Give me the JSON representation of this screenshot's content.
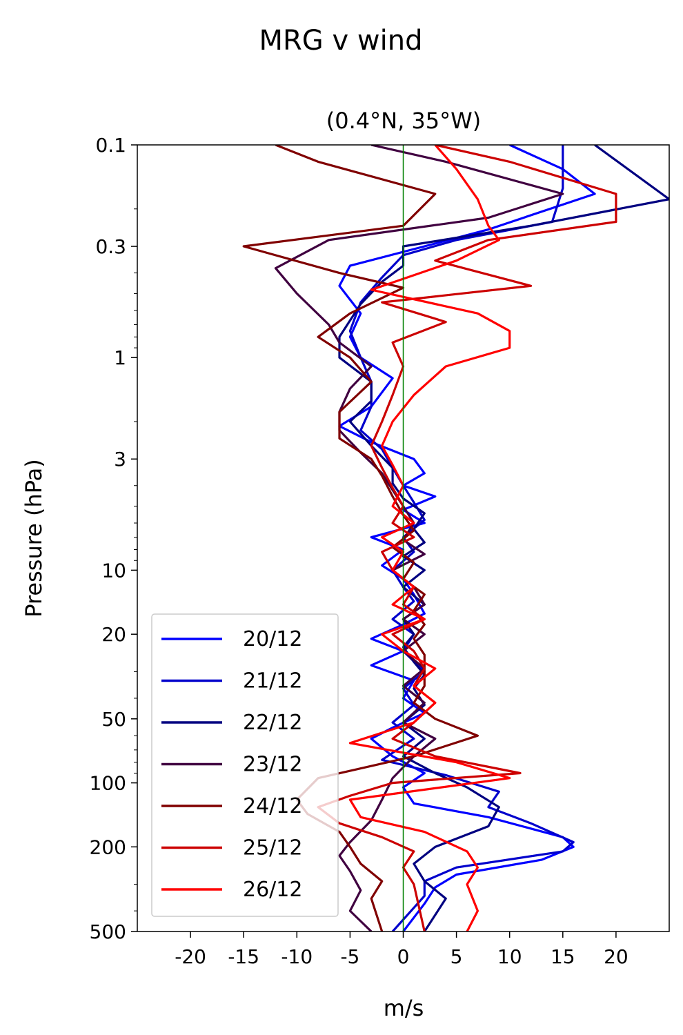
{
  "figure": {
    "suptitle": "MRG v wind"
  },
  "chart_data": {
    "type": "line",
    "title": "(0.4°N, 35°W)",
    "xlabel": "m/s",
    "ylabel": "Pressure (hPa)",
    "xlim": [
      -25,
      25
    ],
    "ylim": [
      500,
      0.1
    ],
    "yscale": "log",
    "grid": false,
    "legend_position": "lower-left",
    "x_ticks": [
      -20,
      -15,
      -10,
      -5,
      0,
      5,
      10,
      15,
      20
    ],
    "x_tick_labels": [
      "-20",
      "-15",
      "-10",
      "-5",
      "0",
      "5",
      "10",
      "15",
      "20"
    ],
    "y_ticks": [
      0.1,
      0.3,
      1,
      3,
      10,
      20,
      50,
      100,
      200,
      500
    ],
    "y_tick_labels": [
      "0.1",
      "0.3",
      "1",
      "3",
      "10",
      "20",
      "50",
      "100",
      "200",
      "500"
    ],
    "reference_line": {
      "x": 0,
      "color": "#008000"
    },
    "series": [
      {
        "name": "20/12",
        "color": "#0000ff",
        "points": [
          [
            10,
            0.1
          ],
          [
            15,
            0.13
          ],
          [
            18,
            0.17
          ],
          [
            8,
            0.25
          ],
          [
            2,
            0.3
          ],
          [
            -5,
            0.37
          ],
          [
            -6,
            0.46
          ],
          [
            -4,
            0.62
          ],
          [
            -5,
            0.8
          ],
          [
            -4,
            1.0
          ],
          [
            -1,
            1.25
          ],
          [
            -3,
            1.7
          ],
          [
            -6,
            2.1
          ],
          [
            -3,
            2.5
          ],
          [
            1,
            3.0
          ],
          [
            2,
            3.5
          ],
          [
            0,
            4.0
          ],
          [
            3,
            4.5
          ],
          [
            0,
            5.2
          ],
          [
            2,
            6.0
          ],
          [
            -3,
            7.0
          ],
          [
            0,
            8.0
          ],
          [
            -2,
            9.5
          ],
          [
            0,
            11
          ],
          [
            1,
            13
          ],
          [
            2,
            16
          ],
          [
            0,
            18
          ],
          [
            -3,
            21
          ],
          [
            0,
            24
          ],
          [
            -3,
            28
          ],
          [
            1,
            33
          ],
          [
            0,
            40
          ],
          [
            2,
            47
          ],
          [
            -1,
            55
          ],
          [
            -3,
            62
          ],
          [
            -1,
            75
          ],
          [
            2,
            90
          ],
          [
            0,
            105
          ],
          [
            1,
            125
          ],
          [
            8,
            145
          ],
          [
            15,
            180
          ],
          [
            16,
            200
          ],
          [
            13,
            230
          ],
          [
            5,
            270
          ],
          [
            3,
            310
          ],
          [
            2,
            370
          ],
          [
            0,
            500
          ]
        ]
      },
      {
        "name": "21/12",
        "color": "#0000cc",
        "points": [
          [
            15,
            0.1
          ],
          [
            15,
            0.16
          ],
          [
            14,
            0.23
          ],
          [
            5,
            0.28
          ],
          [
            0,
            0.33
          ],
          [
            -2,
            0.42
          ],
          [
            -4,
            0.55
          ],
          [
            -5,
            0.75
          ],
          [
            -4,
            1.0
          ],
          [
            -3,
            1.3
          ],
          [
            -3,
            1.7
          ],
          [
            -4,
            2.2
          ],
          [
            -2,
            2.7
          ],
          [
            -1,
            3.3
          ],
          [
            0,
            4.0
          ],
          [
            1,
            4.8
          ],
          [
            2,
            5.8
          ],
          [
            0,
            7.0
          ],
          [
            1,
            8.2
          ],
          [
            -1,
            10
          ],
          [
            0,
            12
          ],
          [
            1,
            14
          ],
          [
            -1,
            17
          ],
          [
            1,
            20
          ],
          [
            0,
            24
          ],
          [
            2,
            30
          ],
          [
            0,
            36
          ],
          [
            1,
            43
          ],
          [
            -1,
            52
          ],
          [
            1,
            62
          ],
          [
            -2,
            78
          ],
          [
            4,
            92
          ],
          [
            9,
            110
          ],
          [
            8,
            130
          ],
          [
            12,
            155
          ],
          [
            16,
            190
          ],
          [
            15,
            210
          ],
          [
            5,
            250
          ],
          [
            2,
            290
          ],
          [
            2,
            340
          ],
          [
            -1,
            500
          ]
        ]
      },
      {
        "name": "22/12",
        "color": "#000080",
        "points": [
          [
            18,
            0.1
          ],
          [
            25,
            0.18
          ],
          [
            12,
            0.24
          ],
          [
            0,
            0.3
          ],
          [
            0,
            0.37
          ],
          [
            -2,
            0.44
          ],
          [
            -4,
            0.56
          ],
          [
            -6,
            0.8
          ],
          [
            -6,
            1.0
          ],
          [
            -3,
            1.3
          ],
          [
            -3,
            1.6
          ],
          [
            -5,
            2.0
          ],
          [
            -3,
            2.6
          ],
          [
            -1,
            3.3
          ],
          [
            -1,
            3.9
          ],
          [
            0,
            4.6
          ],
          [
            2,
            5.4
          ],
          [
            1,
            6.4
          ],
          [
            2,
            7.4
          ],
          [
            0,
            8.6
          ],
          [
            2,
            10
          ],
          [
            0,
            12
          ],
          [
            2,
            14.5
          ],
          [
            0,
            17
          ],
          [
            1,
            20
          ],
          [
            0,
            23
          ],
          [
            1,
            27
          ],
          [
            2,
            31
          ],
          [
            1,
            36
          ],
          [
            2,
            43
          ],
          [
            0,
            52
          ],
          [
            2,
            62
          ],
          [
            0,
            75
          ],
          [
            3,
            90
          ],
          [
            6,
            105
          ],
          [
            9,
            130
          ],
          [
            8,
            160
          ],
          [
            3,
            200
          ],
          [
            1,
            240
          ],
          [
            2,
            290
          ],
          [
            4,
            350
          ],
          [
            2,
            500
          ]
        ]
      },
      {
        "name": "23/12",
        "color": "#400040",
        "points": [
          [
            -3,
            0.1
          ],
          [
            4,
            0.12
          ],
          [
            15,
            0.17
          ],
          [
            8,
            0.22
          ],
          [
            -7,
            0.28
          ],
          [
            -12,
            0.38
          ],
          [
            -10,
            0.5
          ],
          [
            -7,
            0.7
          ],
          [
            -6,
            0.85
          ],
          [
            -3,
            1.1
          ],
          [
            -5,
            1.4
          ],
          [
            -6,
            1.8
          ],
          [
            -6,
            2.2
          ],
          [
            -4,
            2.8
          ],
          [
            -2,
            3.5
          ],
          [
            -1,
            4.2
          ],
          [
            0,
            5.0
          ],
          [
            1,
            6.0
          ],
          [
            0,
            7.2
          ],
          [
            2,
            8.4
          ],
          [
            -1,
            10
          ],
          [
            1,
            12
          ],
          [
            2,
            14.5
          ],
          [
            0,
            17
          ],
          [
            2,
            20
          ],
          [
            0,
            24
          ],
          [
            2,
            29
          ],
          [
            0,
            35
          ],
          [
            2,
            42
          ],
          [
            0,
            52
          ],
          [
            3,
            62
          ],
          [
            1,
            75
          ],
          [
            -1,
            95
          ],
          [
            -2,
            120
          ],
          [
            -3,
            150
          ],
          [
            -5,
            190
          ],
          [
            -6,
            220
          ],
          [
            -5,
            260
          ],
          [
            -4,
            320
          ],
          [
            -5,
            400
          ],
          [
            -3,
            500
          ]
        ]
      },
      {
        "name": "24/12",
        "color": "#800000",
        "points": [
          [
            -12,
            0.1
          ],
          [
            -8,
            0.12
          ],
          [
            3,
            0.17
          ],
          [
            0,
            0.24
          ],
          [
            -15,
            0.3
          ],
          [
            -6,
            0.4
          ],
          [
            0,
            0.47
          ],
          [
            -5,
            0.62
          ],
          [
            -8,
            0.8
          ],
          [
            -5,
            1.0
          ],
          [
            -3,
            1.3
          ],
          [
            -6,
            1.8
          ],
          [
            -6,
            2.4
          ],
          [
            -3,
            3.0
          ],
          [
            -2,
            3.6
          ],
          [
            -1,
            4.5
          ],
          [
            0,
            5.5
          ],
          [
            1,
            6.5
          ],
          [
            -1,
            7.8
          ],
          [
            1,
            9.2
          ],
          [
            0,
            11
          ],
          [
            2,
            13
          ],
          [
            1,
            15.5
          ],
          [
            2,
            18
          ],
          [
            1,
            21
          ],
          [
            2,
            25
          ],
          [
            2,
            29
          ],
          [
            2,
            35
          ],
          [
            1,
            42
          ],
          [
            3,
            50
          ],
          [
            7,
            60
          ],
          [
            1,
            75
          ],
          [
            -8,
            95
          ],
          [
            -10,
            120
          ],
          [
            -9,
            140
          ],
          [
            -6,
            170
          ],
          [
            -5,
            200
          ],
          [
            -4,
            240
          ],
          [
            -2,
            290
          ],
          [
            -3,
            350
          ],
          [
            -2,
            500
          ]
        ]
      },
      {
        "name": "25/12",
        "color": "#cc0000",
        "points": [
          [
            3,
            0.1
          ],
          [
            10,
            0.12
          ],
          [
            20,
            0.17
          ],
          [
            20,
            0.23
          ],
          [
            8,
            0.28
          ],
          [
            3,
            0.35
          ],
          [
            12,
            0.46
          ],
          [
            -2,
            0.55
          ],
          [
            4,
            0.68
          ],
          [
            -1,
            0.85
          ],
          [
            0,
            1.1
          ],
          [
            -1,
            1.5
          ],
          [
            -2,
            2.0
          ],
          [
            -3,
            2.6
          ],
          [
            -2,
            3.3
          ],
          [
            -1,
            4.1
          ],
          [
            0,
            5.0
          ],
          [
            -1,
            6.0
          ],
          [
            1,
            7.0
          ],
          [
            -2,
            8.2
          ],
          [
            -1,
            10
          ],
          [
            1,
            12
          ],
          [
            0,
            14.5
          ],
          [
            2,
            17
          ],
          [
            -1,
            20
          ],
          [
            1,
            24
          ],
          [
            2,
            29
          ],
          [
            1,
            35
          ],
          [
            3,
            42
          ],
          [
            1,
            52
          ],
          [
            -1,
            62
          ],
          [
            3,
            75
          ],
          [
            11,
            90
          ],
          [
            -1,
            100
          ],
          [
            -5,
            115
          ],
          [
            -8,
            130
          ],
          [
            -6,
            155
          ],
          [
            -2,
            180
          ],
          [
            1,
            210
          ],
          [
            0,
            250
          ],
          [
            1,
            300
          ],
          [
            2,
            500
          ]
        ]
      },
      {
        "name": "26/12",
        "color": "#ff0000",
        "points": [
          [
            3,
            0.1
          ],
          [
            5,
            0.13
          ],
          [
            7,
            0.18
          ],
          [
            8,
            0.24
          ],
          [
            9,
            0.28
          ],
          [
            5,
            0.35
          ],
          [
            -3,
            0.48
          ],
          [
            7,
            0.62
          ],
          [
            10,
            0.75
          ],
          [
            10,
            0.9
          ],
          [
            4,
            1.1
          ],
          [
            1,
            1.5
          ],
          [
            -1,
            2.0
          ],
          [
            -2,
            2.6
          ],
          [
            -1,
            3.2
          ],
          [
            0,
            4.0
          ],
          [
            -1,
            5.0
          ],
          [
            1,
            6.0
          ],
          [
            -2,
            7.0
          ],
          [
            0,
            8.2
          ],
          [
            -1,
            10
          ],
          [
            1,
            12
          ],
          [
            -1,
            14.5
          ],
          [
            2,
            17
          ],
          [
            -2,
            20
          ],
          [
            0,
            24
          ],
          [
            3,
            29
          ],
          [
            1,
            35
          ],
          [
            3,
            42
          ],
          [
            1,
            52
          ],
          [
            -5,
            65
          ],
          [
            5,
            80
          ],
          [
            10,
            95
          ],
          [
            -5,
            120
          ],
          [
            -4,
            145
          ],
          [
            2,
            170
          ],
          [
            6,
            210
          ],
          [
            7,
            250
          ],
          [
            6,
            300
          ],
          [
            7,
            400
          ],
          [
            6,
            500
          ]
        ]
      }
    ]
  }
}
